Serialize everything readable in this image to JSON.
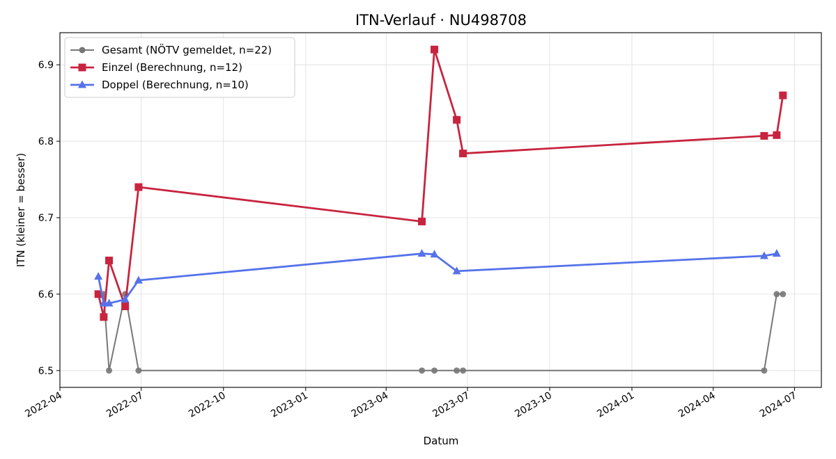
{
  "chart_data": {
    "type": "line",
    "title": "ITN-Verlauf · NU498708",
    "xlabel": "Datum",
    "ylabel": "ITN  (kleiner = besser)",
    "x_axis": {
      "type": "date",
      "range": [
        "2022-04-01",
        "2024-07-31"
      ],
      "ticks": [
        "2022-04-01",
        "2022-07-01",
        "2022-10-01",
        "2023-01-01",
        "2023-04-01",
        "2023-07-01",
        "2023-10-01",
        "2024-01-01",
        "2024-04-01",
        "2024-07-01"
      ],
      "tick_labels": [
        "2022-04",
        "2022-07",
        "2022-10",
        "2023-01",
        "2023-04",
        "2023-07",
        "2023-10",
        "2024-01",
        "2024-04",
        "2024-07"
      ]
    },
    "y_axis": {
      "range": [
        6.478,
        6.942
      ],
      "ticks": [
        6.5,
        6.6,
        6.7,
        6.8,
        6.9
      ],
      "tick_labels": [
        "6.5",
        "6.6",
        "6.7",
        "6.8",
        "6.9"
      ]
    },
    "grid": true,
    "legend": "top-left",
    "series": [
      {
        "name": "Gesamt (NÖTV gemeldet, n=22)",
        "color": "#777777",
        "marker": "circle",
        "points": [
          {
            "x": "2022-05-14",
            "y": 6.6
          },
          {
            "x": "2022-05-20",
            "y": 6.6
          },
          {
            "x": "2022-05-26",
            "y": 6.5
          },
          {
            "x": "2022-06-13",
            "y": 6.6
          },
          {
            "x": "2022-06-28",
            "y": 6.5
          },
          {
            "x": "2023-05-11",
            "y": 6.5
          },
          {
            "x": "2023-05-25",
            "y": 6.5
          },
          {
            "x": "2023-06-19",
            "y": 6.5
          },
          {
            "x": "2023-06-26",
            "y": 6.5
          },
          {
            "x": "2024-05-28",
            "y": 6.5
          },
          {
            "x": "2024-06-11",
            "y": 6.6
          },
          {
            "x": "2024-06-18",
            "y": 6.6
          }
        ]
      },
      {
        "name": "Einzel (Berechnung, n=12)",
        "color": "#c8243f",
        "marker": "square",
        "points": [
          {
            "x": "2022-05-14",
            "y": 6.6
          },
          {
            "x": "2022-05-20",
            "y": 6.57
          },
          {
            "x": "2022-05-26",
            "y": 6.644
          },
          {
            "x": "2022-06-13",
            "y": 6.584
          },
          {
            "x": "2022-06-28",
            "y": 6.74
          },
          {
            "x": "2023-05-11",
            "y": 6.695
          },
          {
            "x": "2023-05-25",
            "y": 6.92
          },
          {
            "x": "2023-06-19",
            "y": 6.828
          },
          {
            "x": "2023-06-26",
            "y": 6.784
          },
          {
            "x": "2024-05-28",
            "y": 6.807
          },
          {
            "x": "2024-06-11",
            "y": 6.808
          },
          {
            "x": "2024-06-18",
            "y": 6.86
          }
        ]
      },
      {
        "name": "Doppel (Berechnung, n=10)",
        "color": "#5572ea",
        "marker": "triangle",
        "points": [
          {
            "x": "2022-05-14",
            "y": 6.623
          },
          {
            "x": "2022-05-20",
            "y": 6.588
          },
          {
            "x": "2022-05-26",
            "y": 6.588
          },
          {
            "x": "2022-06-13",
            "y": 6.593
          },
          {
            "x": "2022-06-28",
            "y": 6.618
          },
          {
            "x": "2023-05-11",
            "y": 6.653
          },
          {
            "x": "2023-05-25",
            "y": 6.652
          },
          {
            "x": "2023-06-19",
            "y": 6.63
          },
          {
            "x": "2024-05-28",
            "y": 6.65
          },
          {
            "x": "2024-06-11",
            "y": 6.653
          }
        ]
      }
    ]
  }
}
